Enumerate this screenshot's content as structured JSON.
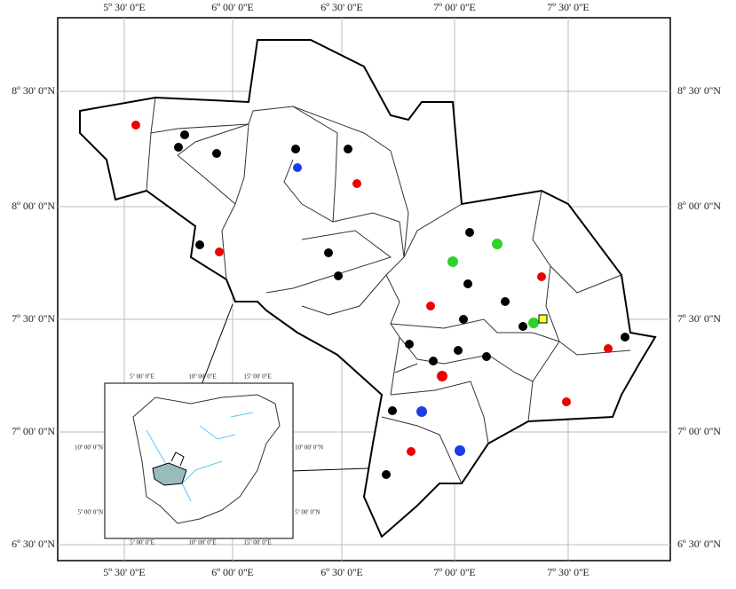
{
  "map": {
    "lon_labels": [
      "5º 30' 0''E",
      "6º 00' 0''E",
      "6º 30' 0''E",
      "7º 00' 0''E",
      "7º 30' 0''E"
    ],
    "lat_labels": [
      "8º 30' 0''N",
      "8º 00' 0''N",
      "7º 30' 0''N",
      "7º 00' 0''N",
      "6º 30' 0''N"
    ],
    "inset": {
      "lon_labels": [
        "5º 00' 0''E",
        "10º 00' 0''E",
        "15º 00' 0''E"
      ],
      "lat_labels": [
        "10º 00' 0''N",
        "5º 00' 0''N"
      ]
    }
  }
}
